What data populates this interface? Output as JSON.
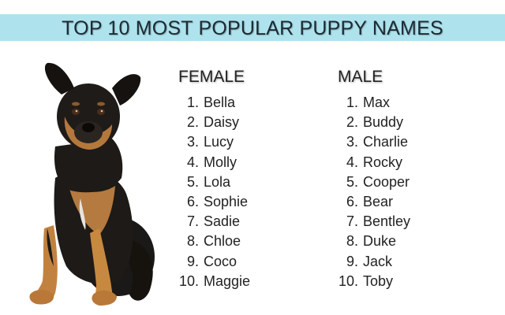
{
  "title": "TOP 10 MOST POPULAR PUPPY NAMES",
  "columns": {
    "female": {
      "heading": "FEMALE",
      "names": [
        {
          "rank": "1.",
          "name": "Bella"
        },
        {
          "rank": "2.",
          "name": "Daisy"
        },
        {
          "rank": "3.",
          "name": "Lucy"
        },
        {
          "rank": "4.",
          "name": "Molly"
        },
        {
          "rank": "5.",
          "name": "Lola"
        },
        {
          "rank": "6.",
          "name": "Sophie"
        },
        {
          "rank": "7.",
          "name": "Sadie"
        },
        {
          "rank": "8.",
          "name": "Chloe"
        },
        {
          "rank": "9.",
          "name": "Coco"
        },
        {
          "rank": "10.",
          "name": "Maggie"
        }
      ]
    },
    "male": {
      "heading": "MALE",
      "names": [
        {
          "rank": "1.",
          "name": "Max"
        },
        {
          "rank": "2.",
          "name": "Buddy"
        },
        {
          "rank": "3.",
          "name": "Charlie"
        },
        {
          "rank": "4.",
          "name": "Rocky"
        },
        {
          "rank": "5.",
          "name": "Cooper"
        },
        {
          "rank": "6.",
          "name": "Bear"
        },
        {
          "rank": "7.",
          "name": "Bentley"
        },
        {
          "rank": "8.",
          "name": "Duke"
        },
        {
          "rank": "9.",
          "name": "Jack"
        },
        {
          "rank": "10.",
          "name": "Toby"
        }
      ]
    }
  },
  "colors": {
    "banner": "#aee3ee",
    "text": "#222222"
  }
}
